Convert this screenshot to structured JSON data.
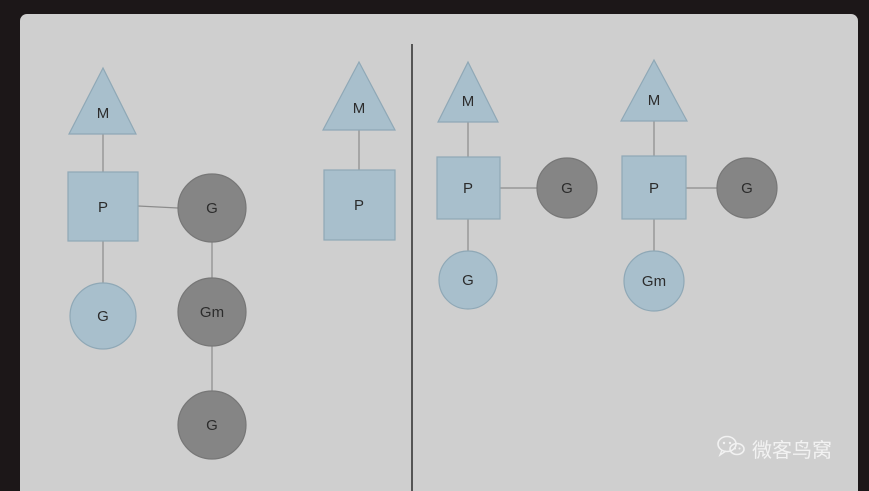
{
  "diagram": {
    "labels": {
      "m": "M",
      "p": "P",
      "g": "G",
      "gm": "Gm"
    },
    "colors": {
      "panel": "#cfcfcf",
      "blue_fill": "#a8bfcc",
      "blue_stroke": "#8fa8b6",
      "gray_fill": "#858585",
      "gray_stroke": "#777777",
      "line": "#8c8c8c",
      "divider": "#555555"
    }
  },
  "watermark": {
    "text": "微客鸟窝",
    "icon": "wechat-icon"
  }
}
